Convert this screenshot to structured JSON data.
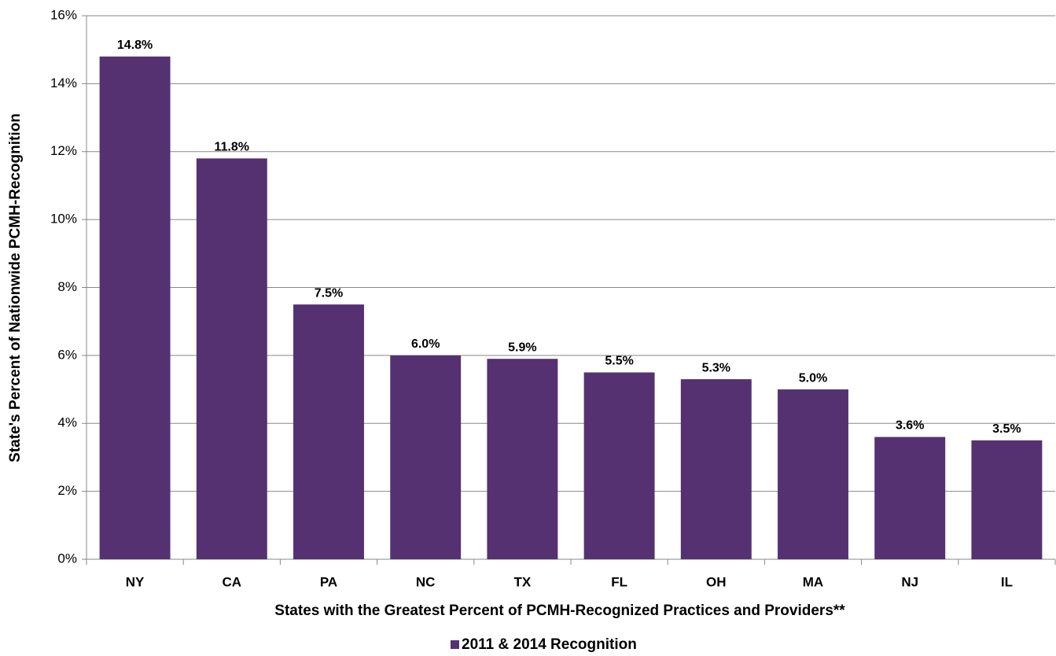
{
  "chart_data": {
    "type": "bar",
    "ylabel": "State's Percent of Nationwide PCMH-Recognition",
    "xlabel": "States with the Greatest Percent of PCMH-Recognized Practices and Providers**",
    "categories": [
      "NY",
      "CA",
      "PA",
      "NC",
      "TX",
      "FL",
      "OH",
      "MA",
      "NJ",
      "IL"
    ],
    "series": [
      {
        "name": "2011 & 2014 Recognition",
        "color": "#553172",
        "values": [
          14.8,
          11.8,
          7.5,
          6.0,
          5.9,
          5.5,
          5.3,
          5.0,
          3.6,
          3.5
        ],
        "value_labels": [
          "14.8%",
          "11.8%",
          "7.5%",
          "6.0%",
          "5.9%",
          "5.5%",
          "5.3%",
          "5.0%",
          "3.6%",
          "3.5%"
        ]
      }
    ],
    "ylim": [
      0,
      16
    ],
    "yticks": [
      {
        "value": 0,
        "label": "0%"
      },
      {
        "value": 2,
        "label": "2%"
      },
      {
        "value": 4,
        "label": "4%"
      },
      {
        "value": 6,
        "label": "6%"
      },
      {
        "value": 8,
        "label": "8%"
      },
      {
        "value": 10,
        "label": "10%"
      },
      {
        "value": 12,
        "label": "12%"
      },
      {
        "value": 14,
        "label": "14%"
      },
      {
        "value": 16,
        "label": "16%"
      }
    ],
    "grid": true,
    "legend": "bottom"
  }
}
